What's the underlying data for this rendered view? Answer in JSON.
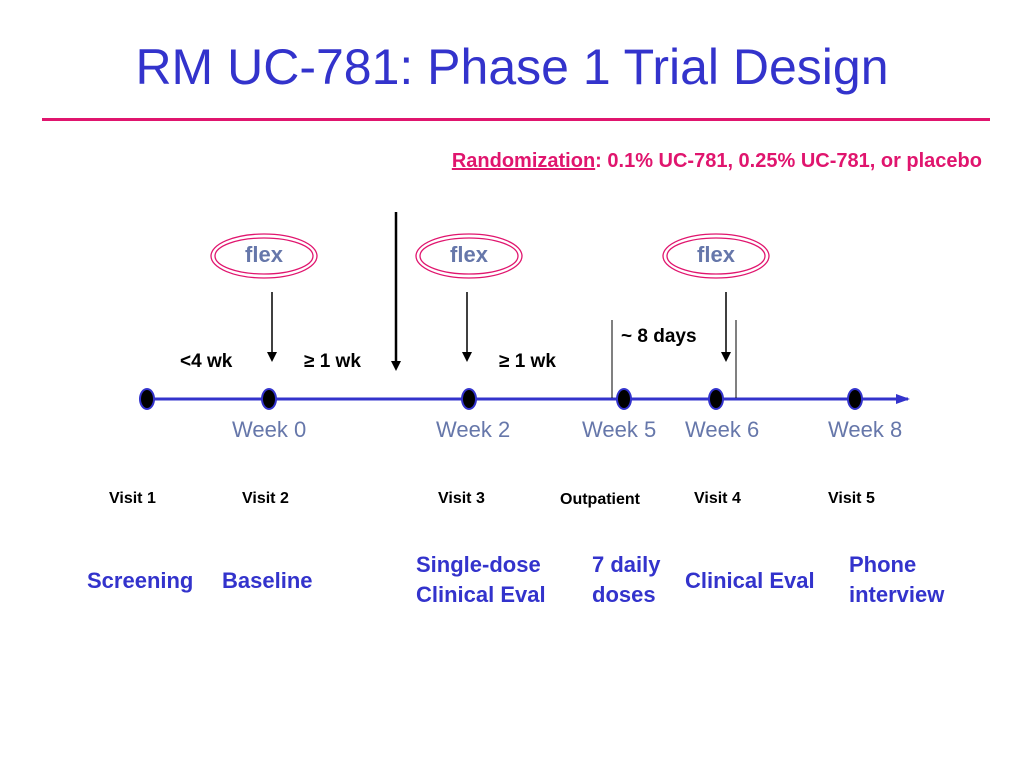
{
  "title": "RM UC-781: Phase 1 Trial Design",
  "randomization": {
    "label": "Randomization",
    "text": ": 0.1% UC-781, 0.25% UC-781, or placebo"
  },
  "flex_labels": [
    "flex",
    "flex",
    "flex"
  ],
  "durations": {
    "lt4wk": "<4 wk",
    "ge1wk_a": "≥ 1 wk",
    "ge1wk_b": "≥ 1 wk",
    "days8": "~ 8 days"
  },
  "weeks": [
    "Week 0",
    "Week 2",
    "Week 5",
    "Week 6",
    "Week 8"
  ],
  "visits": [
    "Visit 1",
    "Visit 2",
    "Visit 3",
    "Outpatient",
    "Visit 4",
    "Visit 5"
  ],
  "activities": {
    "screening": "Screening",
    "baseline": "Baseline",
    "single_dose_1": "Single-dose",
    "single_dose_2": "Clinical Eval",
    "daily_1": "7 daily",
    "daily_2": "doses",
    "clinical_eval": "Clinical Eval",
    "phone_1": "Phone",
    "phone_2": "interview"
  },
  "colors": {
    "title": "#3333cc",
    "accent": "#e0156e",
    "timeline": "#3333cc",
    "week_text": "#6677aa"
  }
}
